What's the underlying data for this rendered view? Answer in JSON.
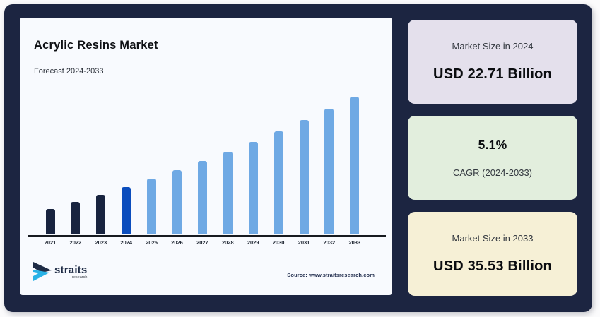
{
  "panel": {
    "background": "#1c2541"
  },
  "chart_card": {
    "background": "#f8fafe",
    "title": "Acrylic Resins Market",
    "subtitle": "Forecast 2024-2033",
    "source": "Source: www.straitsresearch.com",
    "logo": {
      "brand": "straits",
      "sub": "research",
      "icon": "straits-arrow-icon",
      "icon_dark_color": "#1e2b45",
      "icon_cyan_color": "#29b2e6"
    }
  },
  "chart_data": {
    "type": "bar",
    "title": "Acrylic Resins Market",
    "subtitle": "Forecast 2024-2033",
    "unit": "USD Billion",
    "categories": [
      "2021",
      "2022",
      "2023",
      "2024",
      "2025",
      "2026",
      "2027",
      "2028",
      "2029",
      "2030",
      "2031",
      "2032",
      "2033"
    ],
    "values": [
      19.57,
      20.57,
      21.62,
      22.71,
      23.87,
      25.09,
      26.37,
      27.71,
      29.13,
      30.61,
      32.17,
      33.81,
      35.53
    ],
    "labeled_values": {
      "2024": 22.71,
      "2033": 35.53
    },
    "cagr_percent": 5.1,
    "ylim": [
      16,
      36.5
    ],
    "grid": false,
    "legend": false,
    "xlabel": "",
    "ylabel": "",
    "bar_colors": [
      "#18233f",
      "#18233f",
      "#18233f",
      "#0b4dbd",
      "#6fa9e4",
      "#6fa9e4",
      "#6fa9e4",
      "#6fa9e4",
      "#6fa9e4",
      "#6fa9e4",
      "#6fa9e4",
      "#6fa9e4",
      "#6fa9e4"
    ],
    "axis_color": "#171a20"
  },
  "stat_cards": [
    {
      "label": "Market Size in 2024",
      "value": "USD 22.71 Billion",
      "background": "#e4e0ec",
      "value_position": "bottom"
    },
    {
      "label": "CAGR (2024-2033)",
      "value": "5.1%",
      "background": "#e2eedd",
      "value_position": "top"
    },
    {
      "label": "Market Size in 2033",
      "value": "USD 35.53 Billion",
      "background": "#f6f0d6",
      "value_position": "bottom"
    }
  ]
}
